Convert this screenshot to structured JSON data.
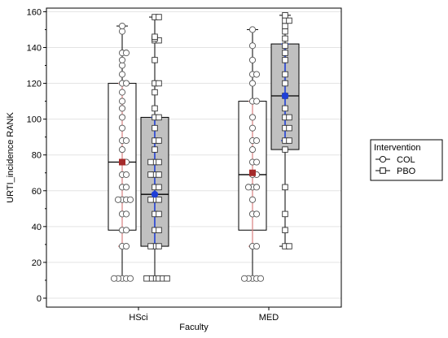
{
  "chart_data": {
    "type": "box",
    "xlabel": "Faculty",
    "ylabel": "URTI_incidence RANK",
    "categories": [
      "HSci",
      "MED"
    ],
    "ylim": [
      -5,
      162
    ],
    "yticks": [
      0,
      20,
      40,
      60,
      80,
      100,
      120,
      140,
      160
    ],
    "grid": true,
    "legend": {
      "title": "Intervention",
      "placement": "right",
      "entries": [
        {
          "label": "COL",
          "marker": "circle"
        },
        {
          "label": "PBO",
          "marker": "square"
        }
      ]
    },
    "colors": {
      "COL_box_fill": "#ffffff",
      "PBO_box_fill": "#c0c0c0",
      "COL_mean": "#a52a2a",
      "PBO_mean": "#1f3fd6",
      "COL_ci": "#d88080",
      "PBO_ci": "#1f3fd6"
    },
    "series": [
      {
        "group": "COL",
        "boxes": [
          {
            "category": "HSci",
            "min": 11,
            "q1": 38,
            "median": 76,
            "q3": 120,
            "max": 152,
            "mean": 76,
            "ci": [
              29,
              120
            ],
            "points": [
              11,
              11,
              11,
              11,
              11,
              29,
              29,
              38,
              38,
              47,
              47,
              55,
              55,
              55,
              55,
              62,
              62,
              69,
              69,
              76,
              76,
              83,
              88,
              88,
              95,
              101,
              106,
              110,
              115,
              120,
              120,
              125,
              130,
              133,
              137,
              137,
              149,
              152
            ]
          },
          {
            "category": "MED",
            "min": 11,
            "q1": 38,
            "median": 69,
            "q3": 110,
            "max": 150,
            "mean": 70,
            "ci": [
              29,
              110
            ],
            "points": [
              11,
              11,
              11,
              11,
              11,
              29,
              29,
              47,
              47,
              55,
              62,
              62,
              62,
              69,
              69,
              76,
              76,
              83,
              88,
              88,
              95,
              101,
              110,
              110,
              120,
              125,
              125,
              133,
              141,
              150
            ]
          }
        ]
      },
      {
        "group": "PBO",
        "boxes": [
          {
            "category": "HSci",
            "min": 11,
            "q1": 29,
            "median": 58,
            "q3": 101,
            "max": 157,
            "mean": 58,
            "ci": [
              29,
              101
            ],
            "points": [
              11,
              11,
              11,
              11,
              11,
              11,
              29,
              29,
              29,
              38,
              38,
              47,
              47,
              55,
              55,
              55,
              62,
              62,
              69,
              69,
              69,
              76,
              76,
              76,
              83,
              88,
              88,
              95,
              101,
              101,
              106,
              115,
              120,
              120,
              133,
              144,
              144,
              145,
              146,
              157,
              157
            ]
          },
          {
            "category": "MED",
            "min": 29,
            "q1": 83,
            "median": 113,
            "q3": 142,
            "max": 158,
            "mean": 113,
            "ci": [
              88,
              142
            ],
            "points": [
              29,
              29,
              38,
              47,
              62,
              83,
              88,
              88,
              95,
              95,
              101,
              101,
              106,
              113,
              120,
              125,
              133,
              137,
              141,
              145,
              149,
              152,
              155,
              155,
              158
            ]
          }
        ]
      }
    ]
  }
}
